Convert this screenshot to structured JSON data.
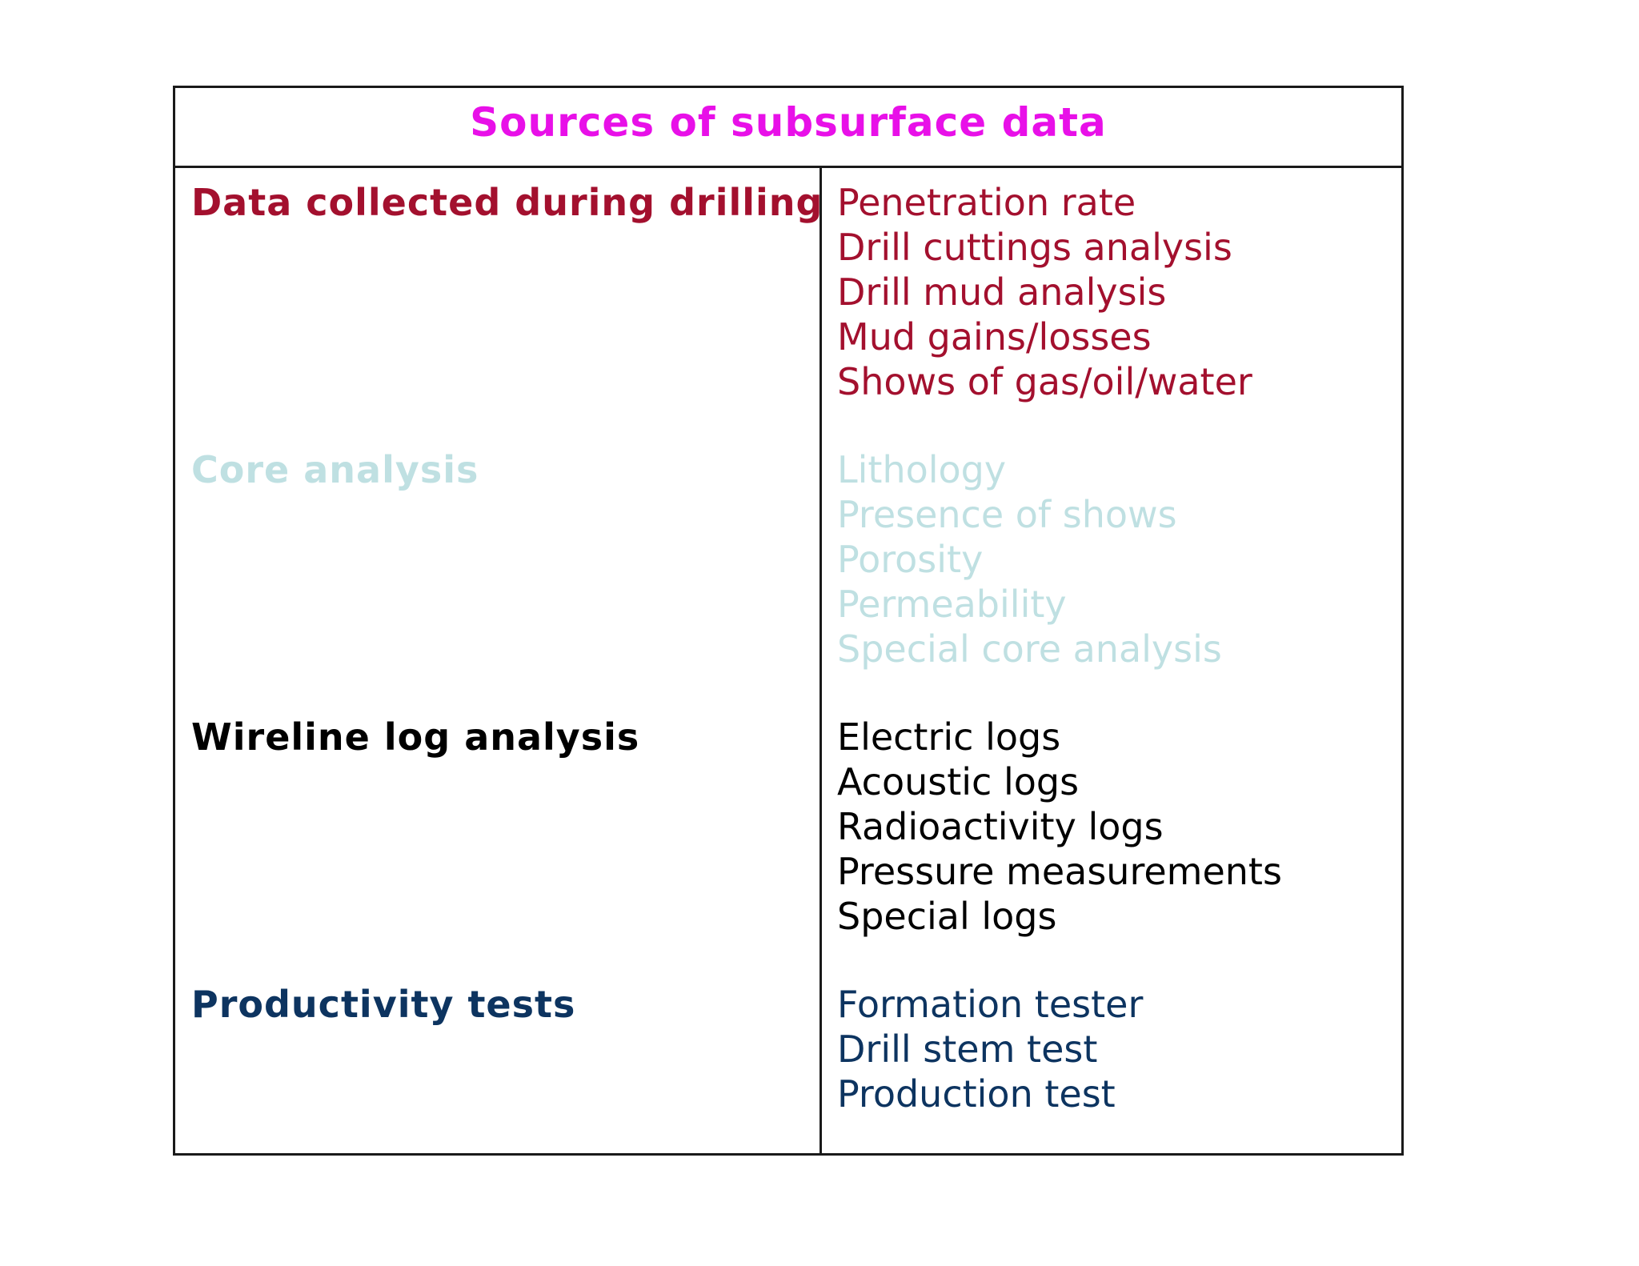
{
  "table": {
    "title": "Sources of subsurface data",
    "title_color": "#e810e8",
    "sections": [
      {
        "heading": "Data collected during drilling",
        "color": "#a3102e",
        "items": [
          "Penetration rate",
          "Drill cuttings analysis",
          "Drill mud analysis",
          "Mud gains/losses",
          "Shows of gas/oil/water"
        ]
      },
      {
        "heading": "Core analysis",
        "color": "#bfe0e2",
        "items": [
          "Lithology",
          "Presence of shows",
          "Porosity",
          "Permeability",
          "Special core analysis"
        ]
      },
      {
        "heading": "Wireline log analysis",
        "color": "#000000",
        "items": [
          "Electric logs",
          "Acoustic logs",
          "Radioactivity logs",
          "Pressure measurements",
          "Special logs"
        ]
      },
      {
        "heading": "Productivity tests",
        "color": "#0d3460",
        "items": [
          "Formation tester",
          "Drill stem test",
          "Production test"
        ]
      }
    ]
  }
}
